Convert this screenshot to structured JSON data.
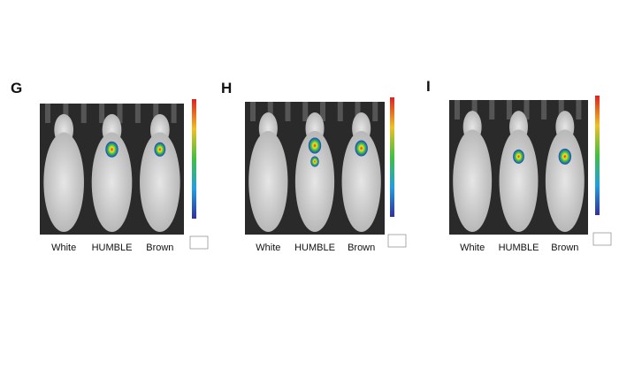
{
  "panels": [
    {
      "label": "G",
      "captions": [
        "White",
        "HUMBLE",
        "Brown"
      ]
    },
    {
      "label": "H",
      "captions": [
        "White",
        "HUMBLE",
        "Brown"
      ]
    },
    {
      "label": "I",
      "captions": [
        "White",
        "HUMBLE",
        "Brown"
      ]
    }
  ]
}
